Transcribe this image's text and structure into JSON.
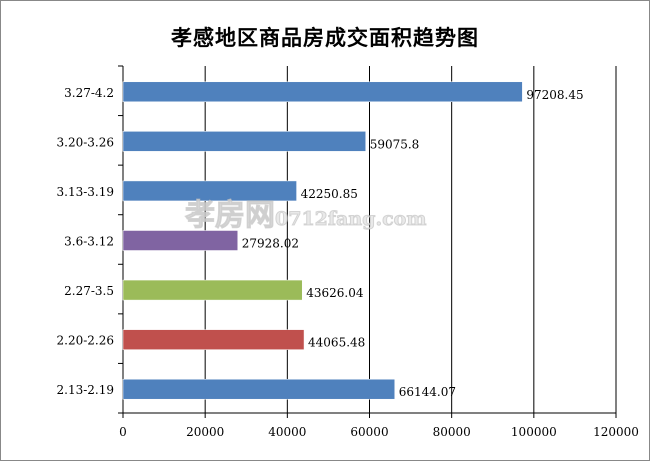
{
  "chart_data": {
    "type": "bar",
    "orientation": "horizontal",
    "title": "孝感地区商品房成交面积趋势图",
    "categories": [
      "3.27-4.2",
      "3.20-3.26",
      "3.13-3.19",
      "3.6-3.12",
      "2.27-3.5",
      "2.20-2.26",
      "2.13-2.19"
    ],
    "values": [
      97208.45,
      59075.8,
      42250.85,
      27928.02,
      43626.04,
      44065.48,
      66144.07
    ],
    "value_labels": [
      "97208.45",
      "59075.8",
      "42250.85",
      "27928.02",
      "43626.04",
      "44065.48",
      "66144.07"
    ],
    "colors": [
      "#4f81bd",
      "#4f81bd",
      "#4f81bd",
      "#8064a2",
      "#9bbb59",
      "#c0504d",
      "#4f81bd"
    ],
    "xlim": [
      0,
      120000
    ],
    "x_ticks": [
      "0",
      "20000",
      "40000",
      "60000",
      "80000",
      "100000",
      "120000"
    ],
    "grid": true,
    "legend": "none",
    "xlabel": "",
    "ylabel": ""
  },
  "watermark": {
    "cn": "孝房网",
    "url": "0712fang.com"
  }
}
